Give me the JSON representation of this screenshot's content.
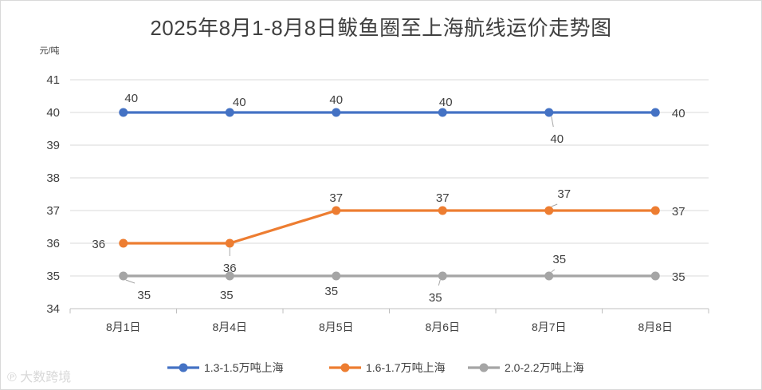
{
  "chart_data": {
    "type": "line",
    "title": "2025年8月1-8月8日鲅鱼圈至上海航线运价走势图",
    "ylabel": "元/吨",
    "xlabel": "",
    "categories": [
      "8月1日",
      "8月4日",
      "8月5日",
      "8月6日",
      "8月7日",
      "8月8日"
    ],
    "ylim": [
      34,
      41
    ],
    "yticks": [
      34,
      35,
      36,
      37,
      38,
      39,
      40,
      41
    ],
    "grid": true,
    "legend_position": "bottom",
    "data_labels": true,
    "series": [
      {
        "name": "1.3-1.5万吨上海",
        "color": "#4472c4",
        "values": [
          40,
          40,
          40,
          40,
          40,
          40
        ]
      },
      {
        "name": "1.6-1.7万吨上海",
        "color": "#ed7d31",
        "values": [
          36,
          36,
          37,
          37,
          37,
          37
        ]
      },
      {
        "name": "2.0-2.2万吨上海",
        "color": "#a5a5a5",
        "values": [
          35,
          35,
          35,
          35,
          35,
          35
        ]
      }
    ]
  },
  "watermark": "大数跨境"
}
